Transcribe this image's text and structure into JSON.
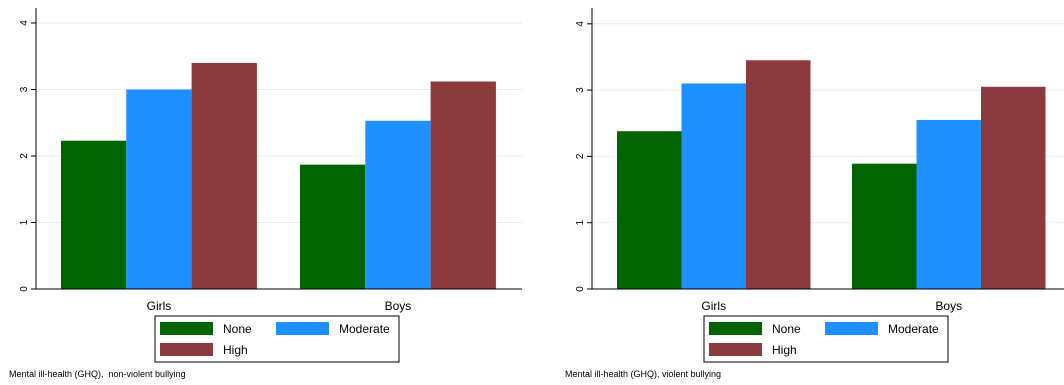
{
  "colors": {
    "None": "#006400",
    "Moderate": "#1e90ff",
    "High": "#8b3a3e",
    "grid": "#e6eef0",
    "axis": "#000000"
  },
  "chart_data": [
    {
      "type": "bar",
      "categories": [
        "Girls",
        "Boys"
      ],
      "series": [
        {
          "name": "None",
          "values": [
            2.23,
            1.87
          ]
        },
        {
          "name": "Moderate",
          "values": [
            3.0,
            2.53
          ]
        },
        {
          "name": "High",
          "values": [
            3.4,
            3.12
          ]
        }
      ],
      "yticks": [
        "0",
        "1",
        "2",
        "3",
        "4"
      ],
      "ylim": [
        0,
        4.2
      ],
      "grid": true,
      "legend": "bottom",
      "caption": "Mental ill-health (GHQ),  non-violent bullying"
    },
    {
      "type": "bar",
      "categories": [
        "Girls",
        "Boys"
      ],
      "series": [
        {
          "name": "None",
          "values": [
            2.38,
            1.89
          ]
        },
        {
          "name": "Moderate",
          "values": [
            3.1,
            2.55
          ]
        },
        {
          "name": "High",
          "values": [
            3.45,
            3.05
          ]
        }
      ],
      "yticks": [
        "0",
        "1",
        "2",
        "3",
        "4"
      ],
      "ylim": [
        0,
        4.2
      ],
      "grid": true,
      "legend": "bottom",
      "caption": "Mental ill-health (GHQ), violent bullying"
    }
  ]
}
